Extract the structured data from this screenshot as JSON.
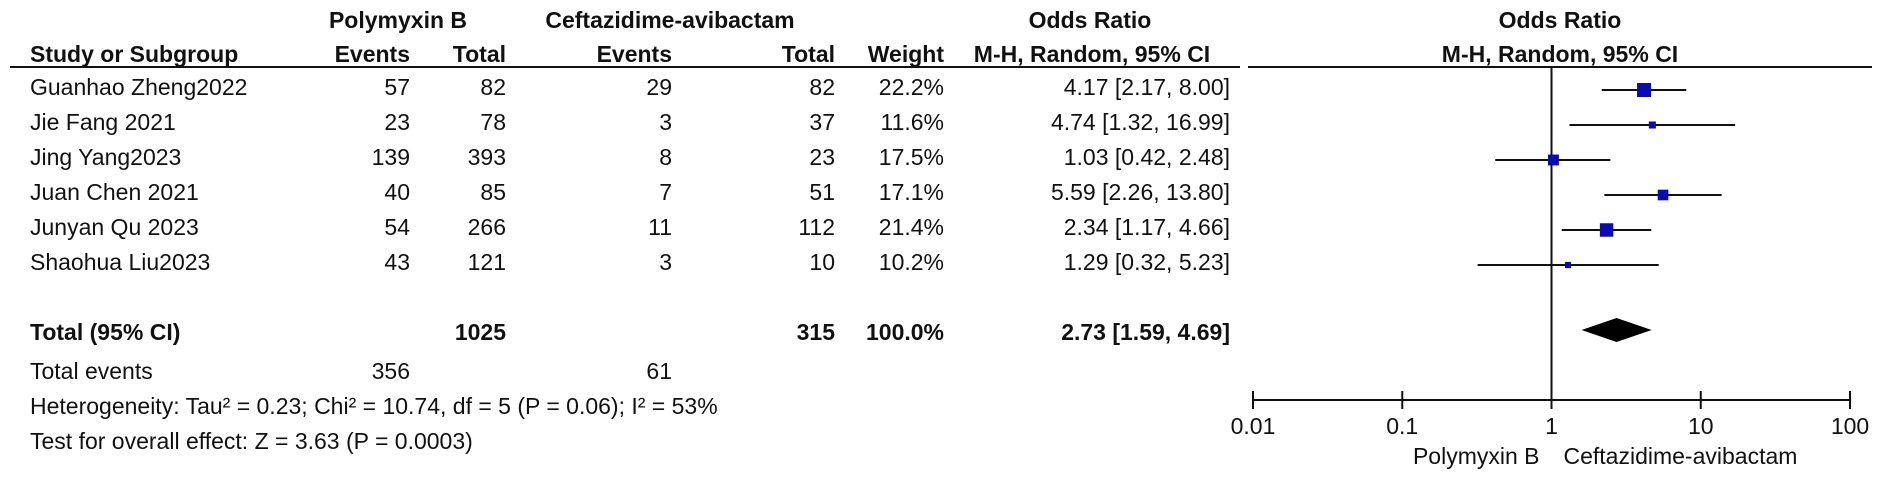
{
  "headers": {
    "group1": "Polymyxin B",
    "group2": "Ceftazidime-avibactam",
    "or_left": "Odds Ratio",
    "or_right": "Odds Ratio",
    "study": "Study or Subgroup",
    "events1": "Events",
    "total1": "Total",
    "events2": "Events",
    "total2": "Total",
    "weight": "Weight",
    "method_left": "M-H, Random, 95% CI",
    "method_right": "M-H, Random, 95% CI"
  },
  "studies": [
    {
      "name": "Guanhao Zheng2022",
      "e1": "57",
      "t1": "82",
      "e2": "29",
      "t2": "82",
      "weight": "22.2%",
      "ci": "4.17 [2.17, 8.00]"
    },
    {
      "name": "Jie Fang  2021",
      "e1": "23",
      "t1": "78",
      "e2": "3",
      "t2": "37",
      "weight": "11.6%",
      "ci": "4.74 [1.32, 16.99]"
    },
    {
      "name": "Jing Yang2023",
      "e1": "139",
      "t1": "393",
      "e2": "8",
      "t2": "23",
      "weight": "17.5%",
      "ci": "1.03 [0.42, 2.48]"
    },
    {
      "name": "Juan Chen 2021",
      "e1": "40",
      "t1": "85",
      "e2": "7",
      "t2": "51",
      "weight": "17.1%",
      "ci": "5.59 [2.26, 13.80]"
    },
    {
      "name": "Junyan Qu 2023",
      "e1": "54",
      "t1": "266",
      "e2": "11",
      "t2": "112",
      "weight": "21.4%",
      "ci": "2.34 [1.17, 4.66]"
    },
    {
      "name": "Shaohua Liu2023",
      "e1": "43",
      "t1": "121",
      "e2": "3",
      "t2": "10",
      "weight": "10.2%",
      "ci": "1.29 [0.32, 5.23]"
    }
  ],
  "total": {
    "label": "Total (95% CI)",
    "t1": "1025",
    "t2": "315",
    "weight": "100.0%",
    "ci": "2.73 [1.59, 4.69]"
  },
  "total_events": {
    "label": "Total events",
    "e1": "356",
    "e2": "61"
  },
  "heterogeneity": "Heterogeneity: Tau² = 0.23; Chi² = 10.74, df = 5 (P = 0.06); I² = 53%",
  "overall_effect": "Test for overall effect: Z = 3.63 (P = 0.0003)",
  "axis_labels": {
    "left": "Polymyxin B",
    "right": "Ceftazidime-avibactam"
  },
  "colors": {
    "marker": "#0b0bb5",
    "line": "#111111",
    "diamond": "#000000"
  },
  "chart_data": {
    "type": "scatter",
    "scale": "log",
    "xlim": [
      0.01,
      100
    ],
    "ticks": [
      "0.01",
      "0.1",
      "1",
      "10",
      "100"
    ],
    "tick_values": [
      0.01,
      0.1,
      1,
      10,
      100
    ],
    "reference_line": 1,
    "points": [
      {
        "study": "Guanhao Zheng2022",
        "or": 4.17,
        "lo": 2.17,
        "hi": 8.0,
        "weight": 22.2
      },
      {
        "study": "Jie Fang  2021",
        "or": 4.74,
        "lo": 1.32,
        "hi": 16.99,
        "weight": 11.6
      },
      {
        "study": "Jing Yang2023",
        "or": 1.03,
        "lo": 0.42,
        "hi": 2.48,
        "weight": 17.5
      },
      {
        "study": "Juan Chen 2021",
        "or": 5.59,
        "lo": 2.26,
        "hi": 13.8,
        "weight": 17.1
      },
      {
        "study": "Junyan Qu 2023",
        "or": 2.34,
        "lo": 1.17,
        "hi": 4.66,
        "weight": 21.4
      },
      {
        "study": "Shaohua Liu2023",
        "or": 1.29,
        "lo": 0.32,
        "hi": 5.23,
        "weight": 10.2
      }
    ],
    "pooled": {
      "or": 2.73,
      "lo": 1.59,
      "hi": 4.69
    }
  }
}
